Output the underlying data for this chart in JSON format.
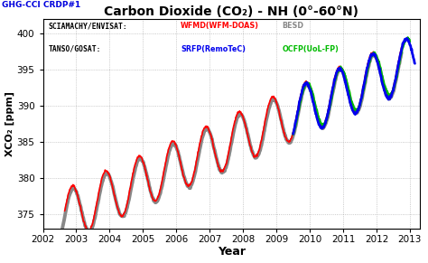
{
  "title": "Carbon Dioxide (CO₂) - NH (0°-60°N)",
  "xlabel": "Year",
  "ylabel": "XCO₂ [ppm]",
  "corner_label": "GHG-CCI CRDP#1",
  "legend_colors": {
    "WFMD": "#ff0000",
    "BESD": "#888888",
    "SRFP": "#0000ee",
    "OCFP": "#00bb00"
  },
  "ylim": [
    373,
    402
  ],
  "yticks": [
    375,
    380,
    385,
    390,
    395,
    400
  ],
  "xlim": [
    2002.0,
    2013.3
  ],
  "xticks": [
    2002,
    2003,
    2004,
    2005,
    2006,
    2007,
    2008,
    2009,
    2010,
    2011,
    2012,
    2013
  ],
  "background_color": "#ffffff",
  "grid_color": "#999999",
  "lw_red": 1.2,
  "lw_gray": 2.8,
  "lw_blue": 2.0,
  "lw_green": 1.8
}
